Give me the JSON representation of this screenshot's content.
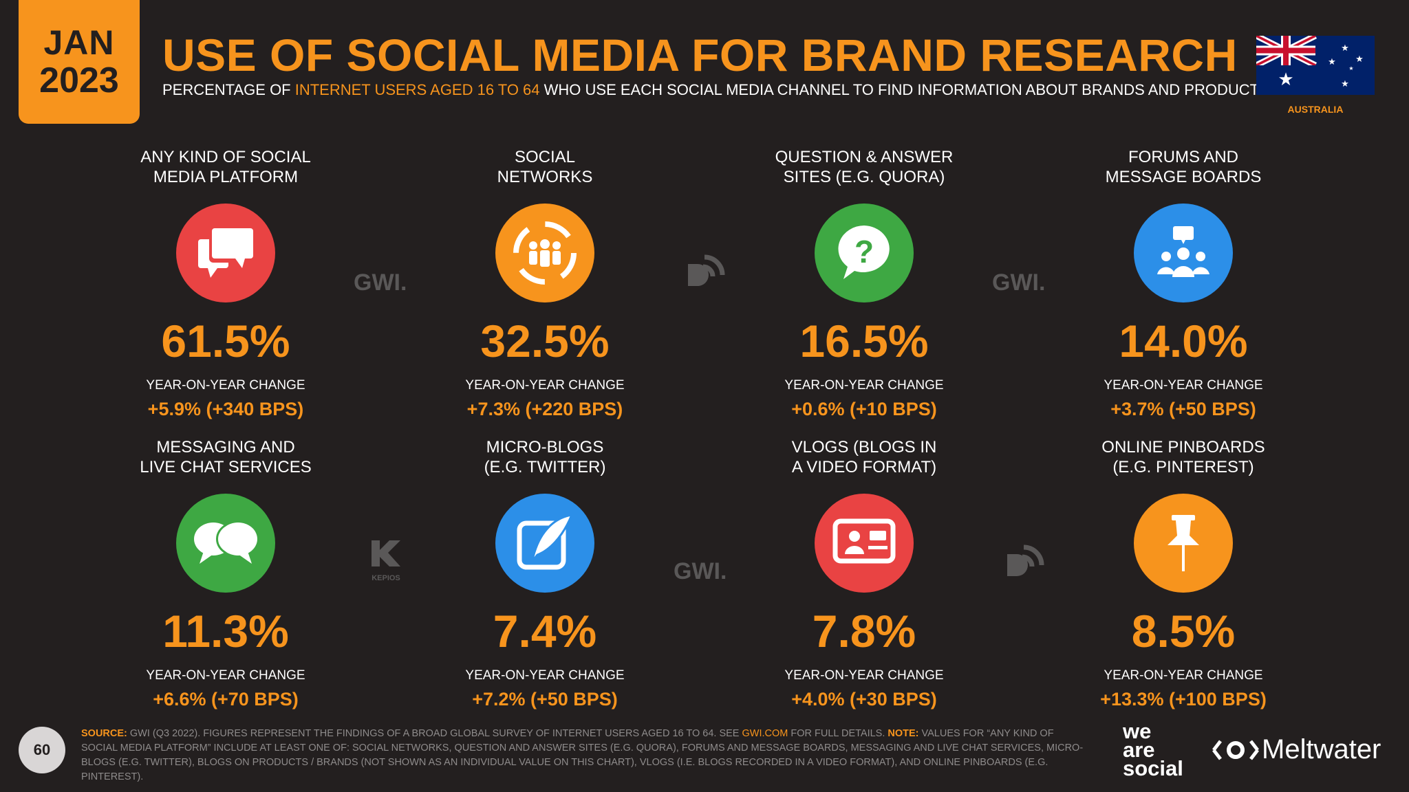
{
  "header": {
    "month": "JAN",
    "year": "2023",
    "title": "USE OF SOCIAL MEDIA FOR BRAND RESEARCH",
    "subtitle_pre": "PERCENTAGE OF ",
    "subtitle_highlight": "INTERNET USERS AGED 16 TO 64",
    "subtitle_post": " WHO USE EACH SOCIAL MEDIA CHANNEL TO FIND INFORMATION ABOUT BRANDS AND PRODUCTS",
    "country": "AUSTRALIA"
  },
  "chart_data": {
    "type": "table",
    "unit": "%",
    "yoy_label": "YEAR-ON-YEAR CHANGE",
    "items": [
      {
        "label_line1": "ANY KIND OF SOCIAL",
        "label_line2": "MEDIA PLATFORM",
        "value": 61.5,
        "value_text": "61.5%",
        "yoy_text": "+5.9% (+340 BPS)",
        "icon": "chat-bubbles-icon",
        "color": "#e94343"
      },
      {
        "label_line1": "SOCIAL",
        "label_line2": "NETWORKS",
        "value": 32.5,
        "value_text": "32.5%",
        "yoy_text": "+7.3% (+220 BPS)",
        "icon": "people-network-icon",
        "color": "#f7941d"
      },
      {
        "label_line1": "QUESTION & ANSWER",
        "label_line2": "SITES (E.G. QUORA)",
        "value": 16.5,
        "value_text": "16.5%",
        "yoy_text": "+0.6% (+10 BPS)",
        "icon": "question-bubble-icon",
        "color": "#3ea843"
      },
      {
        "label_line1": "FORUMS AND",
        "label_line2": "MESSAGE BOARDS",
        "value": 14.0,
        "value_text": "14.0%",
        "yoy_text": "+3.7% (+50 BPS)",
        "icon": "group-forum-icon",
        "color": "#2c8fe8"
      },
      {
        "label_line1": "MESSAGING AND",
        "label_line2": "LIVE CHAT SERVICES",
        "value": 11.3,
        "value_text": "11.3%",
        "yoy_text": "+6.6% (+70 BPS)",
        "icon": "messaging-bubbles-icon",
        "color": "#3ea843"
      },
      {
        "label_line1": "MICRO-BLOGS",
        "label_line2": "(E.G. TWITTER)",
        "value": 7.4,
        "value_text": "7.4%",
        "yoy_text": "+7.2% (+50 BPS)",
        "icon": "quill-icon",
        "color": "#2c8fe8"
      },
      {
        "label_line1": "VLOGS (BLOGS IN",
        "label_line2": "A VIDEO FORMAT)",
        "value": 7.8,
        "value_text": "7.8%",
        "yoy_text": "+4.0% (+30 BPS)",
        "icon": "video-profile-icon",
        "color": "#e94343"
      },
      {
        "label_line1": "ONLINE PINBOARDS",
        "label_line2": "(E.G. PINTEREST)",
        "value": 8.5,
        "value_text": "8.5%",
        "yoy_text": "+13.3% (+100 BPS)",
        "icon": "pushpin-icon",
        "color": "#f7941d"
      }
    ]
  },
  "watermarks": {
    "gwi": "GWI.",
    "kepios": "KEPIOS"
  },
  "footer": {
    "page_number": "60",
    "source_label": "SOURCE:",
    "source_text_1": " GWI (Q3 2022). FIGURES REPRESENT THE FINDINGS OF A BROAD GLOBAL SURVEY OF INTERNET USERS AGED 16 TO 64. SEE ",
    "source_link": "GWI.COM",
    "source_text_2": " FOR FULL DETAILS. ",
    "note_label": "NOTE:",
    "note_text": " VALUES FOR “ANY KIND OF SOCIAL MEDIA PLATFORM” INCLUDE AT LEAST ONE OF: SOCIAL NETWORKS, QUESTION AND ANSWER SITES (E.G. QUORA), FORUMS AND MESSAGE BOARDS, MESSAGING AND LIVE CHAT SERVICES, MICRO-BLOGS (E.G. TWITTER), BLOGS ON PRODUCTS / BRANDS (NOT SHOWN AS AN INDIVIDUAL VALUE ON THIS CHART), VLOGS (I.E. BLOGS RECORDED IN A VIDEO FORMAT), AND ONLINE PINBOARDS (E.G. PINTEREST).",
    "brand1_line1": "we",
    "brand1_line2": "are",
    "brand1_line3": "social",
    "brand2": "Meltwater"
  }
}
